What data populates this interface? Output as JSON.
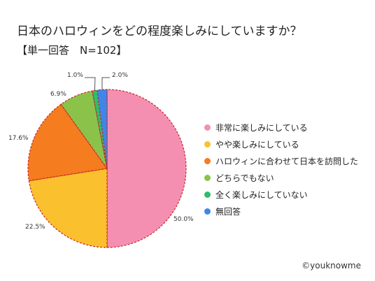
{
  "title": "日本のハロウィンをどの程度楽しみにしていますか？",
  "subtitle": "【単一回答　N=102】",
  "credit": "©youknowme",
  "chart_data": {
    "type": "pie",
    "labels": [
      "非常に楽しみにしている",
      "やや楽しみにしている",
      "ハロウィンに合わせて日本を訪問した",
      "どちらでもない",
      "全く楽しみにしていない",
      "無回答"
    ],
    "values": [
      50.0,
      22.5,
      17.6,
      6.9,
      1.0,
      2.0
    ],
    "value_labels": [
      "50.0%",
      "22.5%",
      "17.6%",
      "6.9%",
      "1.0%",
      "2.0%"
    ],
    "colors": [
      "#f48fb1",
      "#fbc02d",
      "#f57c1f",
      "#8bc34a",
      "#2ebd6b",
      "#3f86e8"
    ],
    "start": "12 o'clock",
    "direction": "clockwise",
    "legend_position": "right"
  }
}
